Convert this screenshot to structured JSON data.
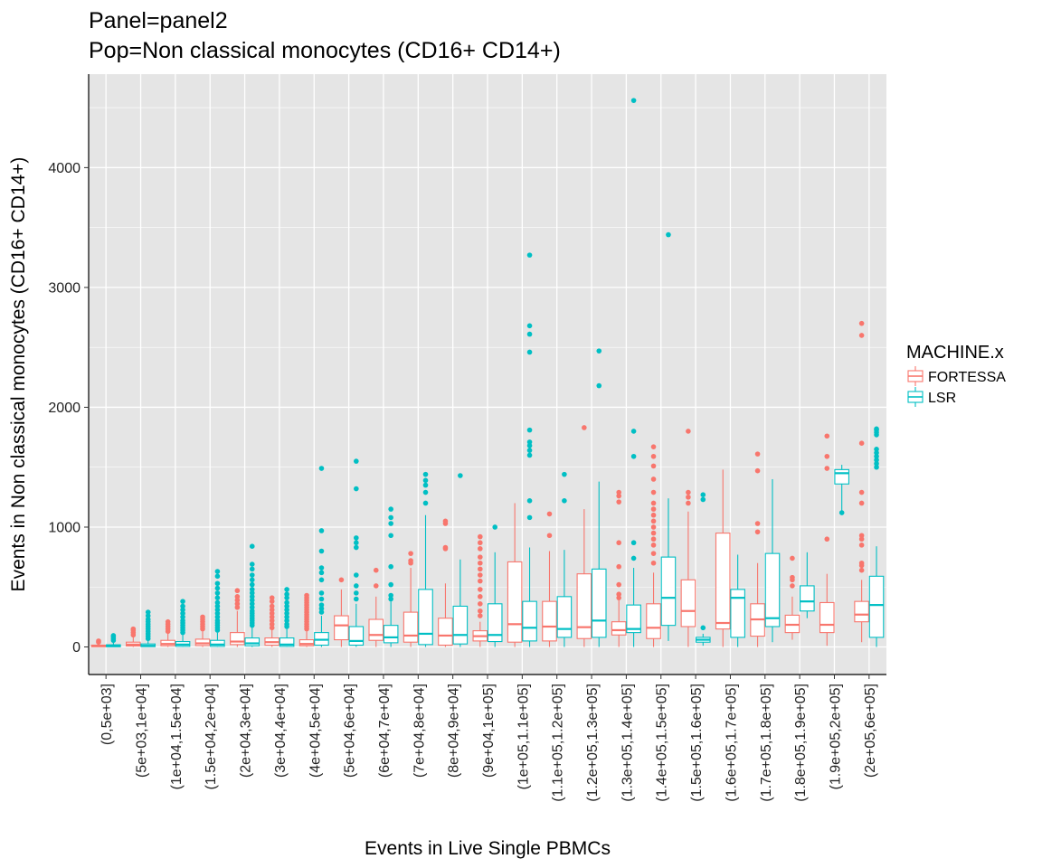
{
  "chart_data": {
    "type": "boxplot",
    "title": "Panel=panel2",
    "subtitle": "Pop=Non classical monocytes (CD16+ CD14+)",
    "xlabel": "Events in Live Single PBMCs",
    "ylabel": "Events in Non classical monocytes (CD16+ CD14+)",
    "ylim": [
      -230,
      4780
    ],
    "yticks": [
      0,
      1000,
      2000,
      3000,
      4000
    ],
    "grid": true,
    "legend": {
      "title": "MACHINE.x",
      "placement": "right",
      "entries": [
        "FORTESSA",
        "LSR"
      ]
    },
    "colors": {
      "FORTESSA": "#F8766D",
      "LSR": "#00BFC4",
      "panel": "#E5E5E5",
      "grid": "#FFFFFF"
    },
    "categories": [
      "(0,5e+03]",
      "(5e+03,1e+04]",
      "(1e+04,1.5e+04]",
      "(1.5e+04,2e+04]",
      "(2e+04,3e+04]",
      "(3e+04,4e+04]",
      "(4e+04,5e+04]",
      "(5e+04,6e+04]",
      "(6e+04,7e+04]",
      "(7e+04,8e+04]",
      "(8e+04,9e+04]",
      "(9e+04,1e+05]",
      "(1e+05,1.1e+05]",
      "(1.1e+05,1.2e+05]",
      "(1.2e+05,1.3e+05]",
      "(1.3e+05,1.4e+05]",
      "(1.4e+05,1.5e+05]",
      "(1.5e+05,1.6e+05]",
      "(1.6e+05,1.7e+05]",
      "(1.7e+05,1.8e+05]",
      "(1.8e+05,1.9e+05]",
      "(1.9e+05,2e+05]",
      "(2e+05,6e+05]"
    ],
    "series": [
      {
        "name": "FORTESSA",
        "boxes": [
          {
            "min": 0,
            "q1": 2,
            "median": 8,
            "q3": 15,
            "max": 30,
            "outliers": [
              40,
              50
            ]
          },
          {
            "min": 0,
            "q1": 8,
            "median": 20,
            "q3": 40,
            "max": 80,
            "outliers": [
              100,
              120,
              140,
              150
            ]
          },
          {
            "min": 0,
            "q1": 10,
            "median": 25,
            "q3": 55,
            "max": 110,
            "outliers": [
              130,
              150,
              170,
              190,
              210
            ]
          },
          {
            "min": 0,
            "q1": 12,
            "median": 30,
            "q3": 65,
            "max": 130,
            "outliers": [
              150,
              170,
              190,
              210,
              230,
              250
            ]
          },
          {
            "min": 0,
            "q1": 20,
            "median": 45,
            "q3": 120,
            "max": 300,
            "outliers": [
              330,
              360,
              390,
              420,
              470
            ]
          },
          {
            "min": 0,
            "q1": 15,
            "median": 40,
            "q3": 75,
            "max": 140,
            "outliers": [
              160,
              190,
              220,
              250,
              280,
              310,
              340,
              380,
              410
            ]
          },
          {
            "min": 0,
            "q1": 10,
            "median": 25,
            "q3": 60,
            "max": 130,
            "outliers": [
              150,
              170,
              190,
              210,
              230,
              250,
              270,
              290,
              310,
              330,
              350,
              370,
              390,
              410,
              430
            ]
          },
          {
            "min": 0,
            "q1": 60,
            "median": 180,
            "q3": 260,
            "max": 480,
            "outliers": [
              560
            ]
          },
          {
            "min": 0,
            "q1": 55,
            "median": 100,
            "q3": 230,
            "max": 420,
            "outliers": [
              510,
              640
            ]
          },
          {
            "min": 0,
            "q1": 40,
            "median": 95,
            "q3": 290,
            "max": 660,
            "outliers": [
              700,
              720,
              780
            ]
          },
          {
            "min": 0,
            "q1": 15,
            "median": 95,
            "q3": 240,
            "max": 530,
            "outliers": [
              820,
              830,
              1030,
              1050
            ]
          },
          {
            "min": 0,
            "q1": 50,
            "median": 90,
            "q3": 135,
            "max": 210,
            "outliers": [
              260,
              300,
              360,
              420,
              480,
              550,
              600,
              650,
              700,
              750,
              820,
              870,
              920
            ]
          },
          {
            "min": 0,
            "q1": 40,
            "median": 190,
            "q3": 710,
            "max": 1200,
            "outliers": []
          },
          {
            "min": 0,
            "q1": 50,
            "median": 170,
            "q3": 380,
            "max": 800,
            "outliers": [
              930,
              1110
            ]
          },
          {
            "min": 0,
            "q1": 70,
            "median": 165,
            "q3": 610,
            "max": 1150,
            "outliers": [
              1830
            ]
          },
          {
            "min": 0,
            "q1": 100,
            "median": 140,
            "q3": 210,
            "max": 390,
            "outliers": [
              410,
              440,
              520,
              670,
              870,
              1210,
              1260,
              1290
            ]
          },
          {
            "min": 0,
            "q1": 70,
            "median": 160,
            "q3": 360,
            "max": 620,
            "outliers": [
              700,
              780,
              850,
              900,
              950,
              1000,
              1050,
              1100,
              1150,
              1200,
              1290,
              1400,
              1510,
              1590,
              1670
            ]
          },
          {
            "min": 0,
            "q1": 170,
            "median": 300,
            "q3": 560,
            "max": 1130,
            "outliers": [
              1200,
              1250,
              1290,
              1800
            ]
          },
          {
            "min": 0,
            "q1": 150,
            "median": 200,
            "q3": 950,
            "max": 1480,
            "outliers": []
          },
          {
            "min": 0,
            "q1": 90,
            "median": 230,
            "q3": 360,
            "max": 700,
            "outliers": [
              960,
              1030,
              1470,
              1610
            ]
          },
          {
            "min": 60,
            "q1": 120,
            "median": 185,
            "q3": 265,
            "max": 420,
            "outliers": [
              510,
              560,
              580,
              740
            ]
          },
          {
            "min": 10,
            "q1": 120,
            "median": 185,
            "q3": 370,
            "max": 610,
            "outliers": [
              900,
              1490,
              1590,
              1760
            ]
          },
          {
            "min": 40,
            "q1": 210,
            "median": 270,
            "q3": 380,
            "max": 560,
            "outliers": [
              640,
              680,
              700,
              850,
              900,
              930,
              1200,
              1290,
              1700,
              2600,
              2700
            ]
          }
        ]
      },
      {
        "name": "LSR",
        "boxes": [
          {
            "min": 0,
            "q1": 2,
            "median": 8,
            "q3": 18,
            "max": 40,
            "outliers": [
              55,
              70,
              85,
              95
            ]
          },
          {
            "min": 0,
            "q1": 3,
            "median": 10,
            "q3": 25,
            "max": 50,
            "outliers": [
              70,
              90,
              110,
              130,
              150,
              170,
              190,
              210,
              230,
              260,
              290
            ]
          },
          {
            "min": 0,
            "q1": 5,
            "median": 20,
            "q3": 45,
            "max": 100,
            "outliers": [
              120,
              140,
              160,
              180,
              200,
              220,
              250,
              280,
              310,
              340,
              380
            ]
          },
          {
            "min": 0,
            "q1": 5,
            "median": 20,
            "q3": 55,
            "max": 120,
            "outliers": [
              140,
              160,
              180,
              200,
              220,
              250,
              280,
              310,
              340,
              370,
              410,
              450,
              490,
              530,
              590,
              630
            ]
          },
          {
            "min": 0,
            "q1": 10,
            "median": 30,
            "q3": 75,
            "max": 160,
            "outliers": [
              180,
              200,
              220,
              240,
              260,
              280,
              300,
              330,
              360,
              390,
              420,
              450,
              480,
              520,
              560,
              600,
              650,
              690,
              840
            ]
          },
          {
            "min": 0,
            "q1": 5,
            "median": 20,
            "q3": 75,
            "max": 150,
            "outliers": [
              170,
              190,
              220,
              250,
              280,
              310,
              340,
              370,
              410,
              440,
              480
            ]
          },
          {
            "min": 0,
            "q1": 15,
            "median": 60,
            "q3": 120,
            "max": 260,
            "outliers": [
              290,
              320,
              350,
              400,
              450,
              560,
              620,
              660,
              800,
              970,
              1490
            ]
          },
          {
            "min": 0,
            "q1": 15,
            "median": 50,
            "q3": 170,
            "max": 360,
            "outliers": [
              400,
              450,
              510,
              600,
              830,
              870,
              910,
              1320,
              1550
            ]
          },
          {
            "min": 0,
            "q1": 35,
            "median": 80,
            "q3": 180,
            "max": 380,
            "outliers": [
              400,
              430,
              520,
              670,
              930,
              1030,
              1080,
              1150
            ]
          },
          {
            "min": 0,
            "q1": 20,
            "median": 110,
            "q3": 480,
            "max": 1100,
            "outliers": [
              1200,
              1290,
              1350,
              1390,
              1440
            ]
          },
          {
            "min": 0,
            "q1": 25,
            "median": 100,
            "q3": 340,
            "max": 730,
            "outliers": [
              1430
            ]
          },
          {
            "min": 0,
            "q1": 45,
            "median": 100,
            "q3": 360,
            "max": 790,
            "outliers": [
              1000
            ]
          },
          {
            "min": 0,
            "q1": 50,
            "median": 160,
            "q3": 380,
            "max": 830,
            "outliers": [
              1080,
              1220,
              1600,
              1640,
              1680,
              1710,
              1810,
              2460,
              2610,
              2680,
              3270
            ]
          },
          {
            "min": 0,
            "q1": 80,
            "median": 150,
            "q3": 420,
            "max": 810,
            "outliers": [
              1220,
              1440
            ]
          },
          {
            "min": 0,
            "q1": 80,
            "median": 220,
            "q3": 650,
            "max": 1380,
            "outliers": [
              2180,
              2470
            ]
          },
          {
            "min": 0,
            "q1": 120,
            "median": 150,
            "q3": 350,
            "max": 660,
            "outliers": [
              740,
              870,
              1590,
              1800,
              4560
            ]
          },
          {
            "min": 50,
            "q1": 180,
            "median": 410,
            "q3": 750,
            "max": 1240,
            "outliers": [
              3440
            ]
          },
          {
            "min": 10,
            "q1": 40,
            "median": 60,
            "q3": 80,
            "max": 110,
            "outliers": [
              160,
              1230,
              1270
            ]
          },
          {
            "min": 0,
            "q1": 80,
            "median": 410,
            "q3": 480,
            "max": 770,
            "outliers": []
          },
          {
            "min": 40,
            "q1": 170,
            "median": 240,
            "q3": 780,
            "max": 1400,
            "outliers": []
          },
          {
            "min": 240,
            "q1": 300,
            "median": 380,
            "q3": 510,
            "max": 790,
            "outliers": []
          },
          {
            "min": 1120,
            "q1": 1360,
            "median": 1450,
            "q3": 1480,
            "max": 1520,
            "outliers": [
              1120
            ]
          },
          {
            "min": 0,
            "q1": 80,
            "median": 350,
            "q3": 590,
            "max": 840,
            "outliers": [
              1500,
              1530,
              1560,
              1590,
              1620,
              1650,
              1770,
              1790,
              1810,
              1820
            ]
          }
        ]
      }
    ]
  }
}
